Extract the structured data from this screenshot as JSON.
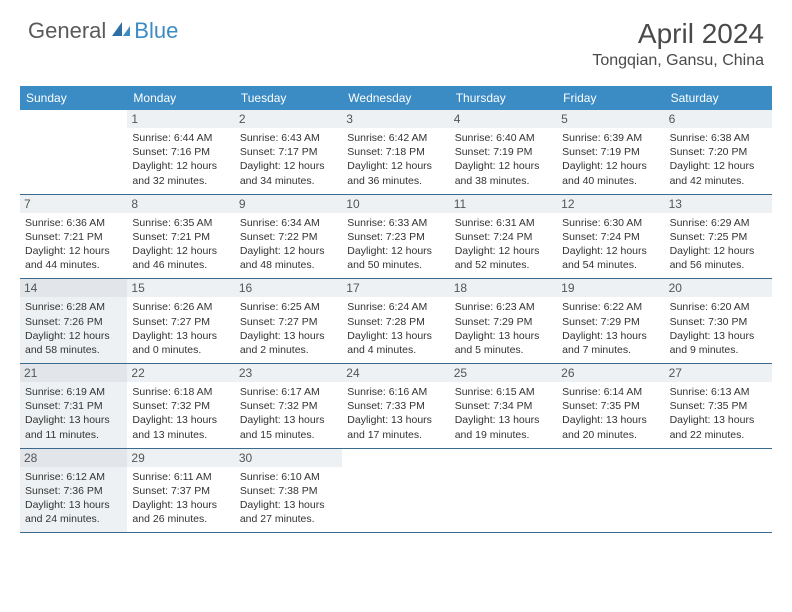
{
  "brand": {
    "part1": "General",
    "part2": "Blue"
  },
  "title": "April 2024",
  "location": "Tongqian, Gansu, China",
  "colors": {
    "header_bg": "#3b8bc4",
    "header_text": "#ffffff",
    "border": "#3b6a8f",
    "shaded": "#eef1f3",
    "text": "#333333",
    "title_text": "#4a4a4a"
  },
  "weekdays": [
    "Sunday",
    "Monday",
    "Tuesday",
    "Wednesday",
    "Thursday",
    "Friday",
    "Saturday"
  ],
  "weeks": [
    [
      {
        "blank": true
      },
      {
        "day": "1",
        "sunrise": "Sunrise: 6:44 AM",
        "sunset": "Sunset: 7:16 PM",
        "dl1": "Daylight: 12 hours",
        "dl2": "and 32 minutes."
      },
      {
        "day": "2",
        "sunrise": "Sunrise: 6:43 AM",
        "sunset": "Sunset: 7:17 PM",
        "dl1": "Daylight: 12 hours",
        "dl2": "and 34 minutes."
      },
      {
        "day": "3",
        "sunrise": "Sunrise: 6:42 AM",
        "sunset": "Sunset: 7:18 PM",
        "dl1": "Daylight: 12 hours",
        "dl2": "and 36 minutes."
      },
      {
        "day": "4",
        "sunrise": "Sunrise: 6:40 AM",
        "sunset": "Sunset: 7:19 PM",
        "dl1": "Daylight: 12 hours",
        "dl2": "and 38 minutes."
      },
      {
        "day": "5",
        "sunrise": "Sunrise: 6:39 AM",
        "sunset": "Sunset: 7:19 PM",
        "dl1": "Daylight: 12 hours",
        "dl2": "and 40 minutes."
      },
      {
        "day": "6",
        "sunrise": "Sunrise: 6:38 AM",
        "sunset": "Sunset: 7:20 PM",
        "dl1": "Daylight: 12 hours",
        "dl2": "and 42 minutes."
      }
    ],
    [
      {
        "day": "7",
        "sunrise": "Sunrise: 6:36 AM",
        "sunset": "Sunset: 7:21 PM",
        "dl1": "Daylight: 12 hours",
        "dl2": "and 44 minutes."
      },
      {
        "day": "8",
        "sunrise": "Sunrise: 6:35 AM",
        "sunset": "Sunset: 7:21 PM",
        "dl1": "Daylight: 12 hours",
        "dl2": "and 46 minutes."
      },
      {
        "day": "9",
        "sunrise": "Sunrise: 6:34 AM",
        "sunset": "Sunset: 7:22 PM",
        "dl1": "Daylight: 12 hours",
        "dl2": "and 48 minutes."
      },
      {
        "day": "10",
        "sunrise": "Sunrise: 6:33 AM",
        "sunset": "Sunset: 7:23 PM",
        "dl1": "Daylight: 12 hours",
        "dl2": "and 50 minutes."
      },
      {
        "day": "11",
        "sunrise": "Sunrise: 6:31 AM",
        "sunset": "Sunset: 7:24 PM",
        "dl1": "Daylight: 12 hours",
        "dl2": "and 52 minutes."
      },
      {
        "day": "12",
        "sunrise": "Sunrise: 6:30 AM",
        "sunset": "Sunset: 7:24 PM",
        "dl1": "Daylight: 12 hours",
        "dl2": "and 54 minutes."
      },
      {
        "day": "13",
        "sunrise": "Sunrise: 6:29 AM",
        "sunset": "Sunset: 7:25 PM",
        "dl1": "Daylight: 12 hours",
        "dl2": "and 56 minutes."
      }
    ],
    [
      {
        "day": "14",
        "sunrise": "Sunrise: 6:28 AM",
        "sunset": "Sunset: 7:26 PM",
        "dl1": "Daylight: 12 hours",
        "dl2": "and 58 minutes.",
        "shaded": true
      },
      {
        "day": "15",
        "sunrise": "Sunrise: 6:26 AM",
        "sunset": "Sunset: 7:27 PM",
        "dl1": "Daylight: 13 hours",
        "dl2": "and 0 minutes."
      },
      {
        "day": "16",
        "sunrise": "Sunrise: 6:25 AM",
        "sunset": "Sunset: 7:27 PM",
        "dl1": "Daylight: 13 hours",
        "dl2": "and 2 minutes."
      },
      {
        "day": "17",
        "sunrise": "Sunrise: 6:24 AM",
        "sunset": "Sunset: 7:28 PM",
        "dl1": "Daylight: 13 hours",
        "dl2": "and 4 minutes."
      },
      {
        "day": "18",
        "sunrise": "Sunrise: 6:23 AM",
        "sunset": "Sunset: 7:29 PM",
        "dl1": "Daylight: 13 hours",
        "dl2": "and 5 minutes."
      },
      {
        "day": "19",
        "sunrise": "Sunrise: 6:22 AM",
        "sunset": "Sunset: 7:29 PM",
        "dl1": "Daylight: 13 hours",
        "dl2": "and 7 minutes."
      },
      {
        "day": "20",
        "sunrise": "Sunrise: 6:20 AM",
        "sunset": "Sunset: 7:30 PM",
        "dl1": "Daylight: 13 hours",
        "dl2": "and 9 minutes."
      }
    ],
    [
      {
        "day": "21",
        "sunrise": "Sunrise: 6:19 AM",
        "sunset": "Sunset: 7:31 PM",
        "dl1": "Daylight: 13 hours",
        "dl2": "and 11 minutes.",
        "shaded": true
      },
      {
        "day": "22",
        "sunrise": "Sunrise: 6:18 AM",
        "sunset": "Sunset: 7:32 PM",
        "dl1": "Daylight: 13 hours",
        "dl2": "and 13 minutes."
      },
      {
        "day": "23",
        "sunrise": "Sunrise: 6:17 AM",
        "sunset": "Sunset: 7:32 PM",
        "dl1": "Daylight: 13 hours",
        "dl2": "and 15 minutes."
      },
      {
        "day": "24",
        "sunrise": "Sunrise: 6:16 AM",
        "sunset": "Sunset: 7:33 PM",
        "dl1": "Daylight: 13 hours",
        "dl2": "and 17 minutes."
      },
      {
        "day": "25",
        "sunrise": "Sunrise: 6:15 AM",
        "sunset": "Sunset: 7:34 PM",
        "dl1": "Daylight: 13 hours",
        "dl2": "and 19 minutes."
      },
      {
        "day": "26",
        "sunrise": "Sunrise: 6:14 AM",
        "sunset": "Sunset: 7:35 PM",
        "dl1": "Daylight: 13 hours",
        "dl2": "and 20 minutes."
      },
      {
        "day": "27",
        "sunrise": "Sunrise: 6:13 AM",
        "sunset": "Sunset: 7:35 PM",
        "dl1": "Daylight: 13 hours",
        "dl2": "and 22 minutes."
      }
    ],
    [
      {
        "day": "28",
        "sunrise": "Sunrise: 6:12 AM",
        "sunset": "Sunset: 7:36 PM",
        "dl1": "Daylight: 13 hours",
        "dl2": "and 24 minutes.",
        "shaded": true
      },
      {
        "day": "29",
        "sunrise": "Sunrise: 6:11 AM",
        "sunset": "Sunset: 7:37 PM",
        "dl1": "Daylight: 13 hours",
        "dl2": "and 26 minutes."
      },
      {
        "day": "30",
        "sunrise": "Sunrise: 6:10 AM",
        "sunset": "Sunset: 7:38 PM",
        "dl1": "Daylight: 13 hours",
        "dl2": "and 27 minutes."
      },
      {
        "blank": true
      },
      {
        "blank": true
      },
      {
        "blank": true
      },
      {
        "blank": true
      }
    ]
  ]
}
